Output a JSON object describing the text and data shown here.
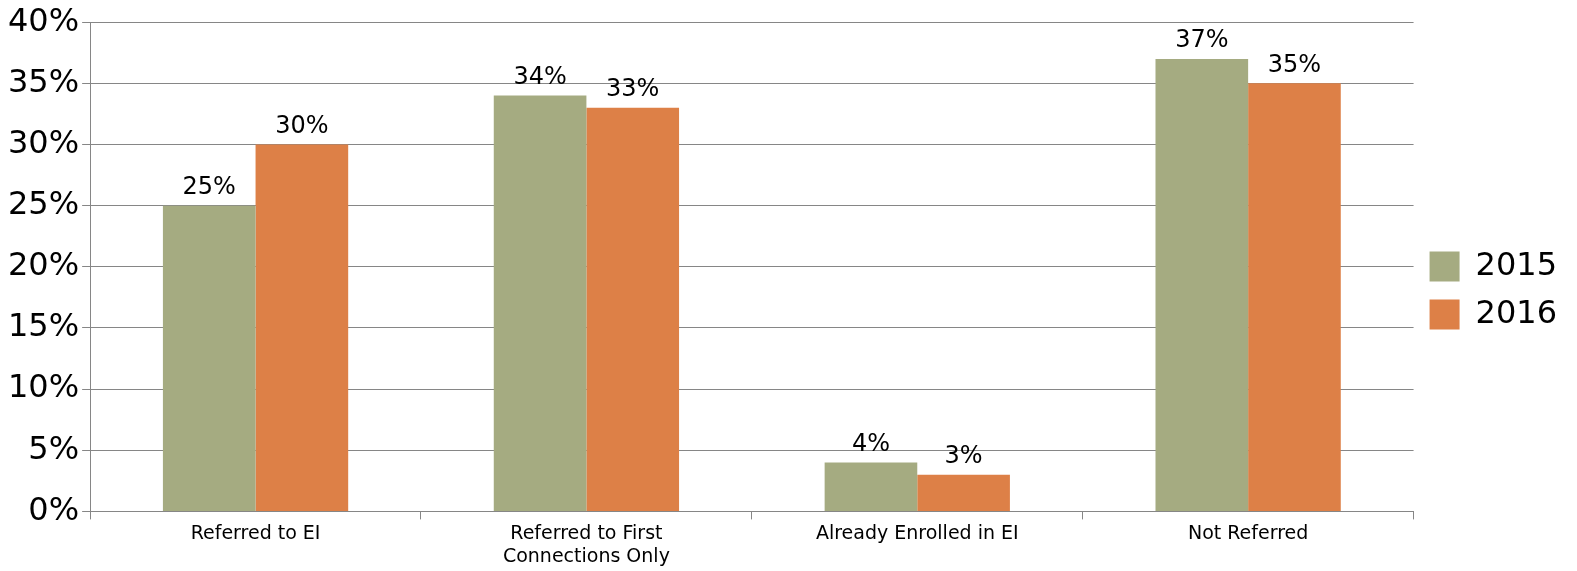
{
  "chart_data": {
    "type": "bar",
    "categories": [
      "Referred to EI",
      "Referred to First Connections Only",
      "Already Enrolled in EI",
      "Not Referred"
    ],
    "series": [
      {
        "name": "2015",
        "color": "#a5ab81",
        "values": [
          25,
          34,
          4,
          37
        ],
        "value_labels": [
          "25%",
          "34%",
          "4%",
          "37%"
        ]
      },
      {
        "name": "2016",
        "color": "#dd8047",
        "values": [
          30,
          33,
          3,
          35
        ],
        "value_labels": [
          "30%",
          "33%",
          "3%",
          "35%"
        ]
      }
    ],
    "ylim": [
      0,
      40
    ],
    "yticks": [
      {
        "value": 0,
        "label": "0%"
      },
      {
        "value": 5,
        "label": "5%"
      },
      {
        "value": 10,
        "label": "10%"
      },
      {
        "value": 15,
        "label": "15%"
      },
      {
        "value": 20,
        "label": "20%"
      },
      {
        "value": 25,
        "label": "25%"
      },
      {
        "value": 30,
        "label": "30%"
      },
      {
        "value": 35,
        "label": "35%"
      },
      {
        "value": 40,
        "label": "40%"
      }
    ],
    "grid": "y",
    "legend": "right"
  }
}
